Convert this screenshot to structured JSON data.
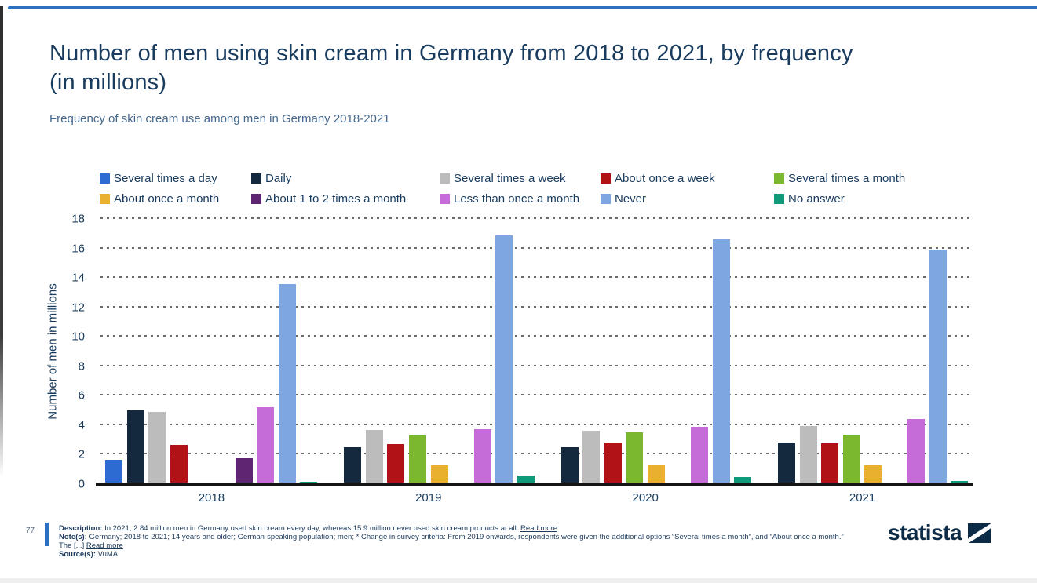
{
  "page": {
    "title": "Number of men using skin cream in Germany from 2018 to 2021, by frequency (in millions)",
    "subtitle": "Frequency of skin cream use among men in Germany 2018-2021",
    "accent_color": "#2D6FC1"
  },
  "chart_data": {
    "type": "bar",
    "title": "Number of men using skin cream in Germany from 2018 to 2021, by frequency (in millions)",
    "subtitle": "Frequency of skin cream use among men in Germany 2018-2021",
    "categories": [
      "2018",
      "2019",
      "2020",
      "2021"
    ],
    "series": [
      {
        "name": "Several times a day",
        "color": "#2D6BD2",
        "values": [
          1.65,
          0,
          0,
          0
        ]
      },
      {
        "name": "Daily",
        "color": "#15293E",
        "values": [
          5,
          2.5,
          2.5,
          2.84
        ]
      },
      {
        "name": "Several times a week",
        "color": "#BCBCBC",
        "values": [
          4.9,
          3.65,
          3.6,
          3.95
        ]
      },
      {
        "name": "About once a week",
        "color": "#B01217",
        "values": [
          2.65,
          2.7,
          2.8,
          2.75
        ]
      },
      {
        "name": "Several times a month",
        "color": "#7CB82F",
        "values": [
          0,
          3.35,
          3.5,
          3.35
        ]
      },
      {
        "name": "About once a month",
        "color": "#E9AF2F",
        "values": [
          0,
          1.3,
          1.35,
          1.3
        ]
      },
      {
        "name": "About 1 to 2 times a month",
        "color": "#5E2572",
        "values": [
          1.75,
          0,
          0,
          0
        ]
      },
      {
        "name": "Less than once a month",
        "color": "#C66CD8",
        "values": [
          5.2,
          3.75,
          3.9,
          4.4
        ]
      },
      {
        "name": "Never",
        "color": "#7EA6E0",
        "values": [
          13.6,
          16.9,
          16.6,
          15.9
        ]
      },
      {
        "name": "No answer",
        "color": "#0F9A7B",
        "values": [
          0.15,
          0.6,
          0.5,
          0.2
        ]
      }
    ],
    "xlabel": "",
    "ylabel": "Number of men in millions",
    "ylim": [
      0,
      18
    ],
    "yticks": [
      0,
      2,
      4,
      6,
      8,
      10,
      12,
      14,
      16,
      18
    ],
    "grid": "horizontal-dotted",
    "legend_position": "top"
  },
  "footer": {
    "page_number": "77",
    "description_label": "Description:",
    "description_text": " In 2021, 2.84 million men in Germany used skin cream every day, whereas 15.9 million never used skin cream products at all. ",
    "description_read_more": "Read more",
    "notes_label": "Note(s):",
    "notes_text": " Germany; 2018 to 2021; 14 years and older; German-speaking population; men; * Change in survey criteria: From 2019 onwards, respondents were given the additional options “Several times a month”, and “About once a month.” The [...] ",
    "notes_read_more": "Read more",
    "source_label": "Source(s):",
    "source_text": " VuMA"
  },
  "logo": {
    "text": "statista"
  }
}
